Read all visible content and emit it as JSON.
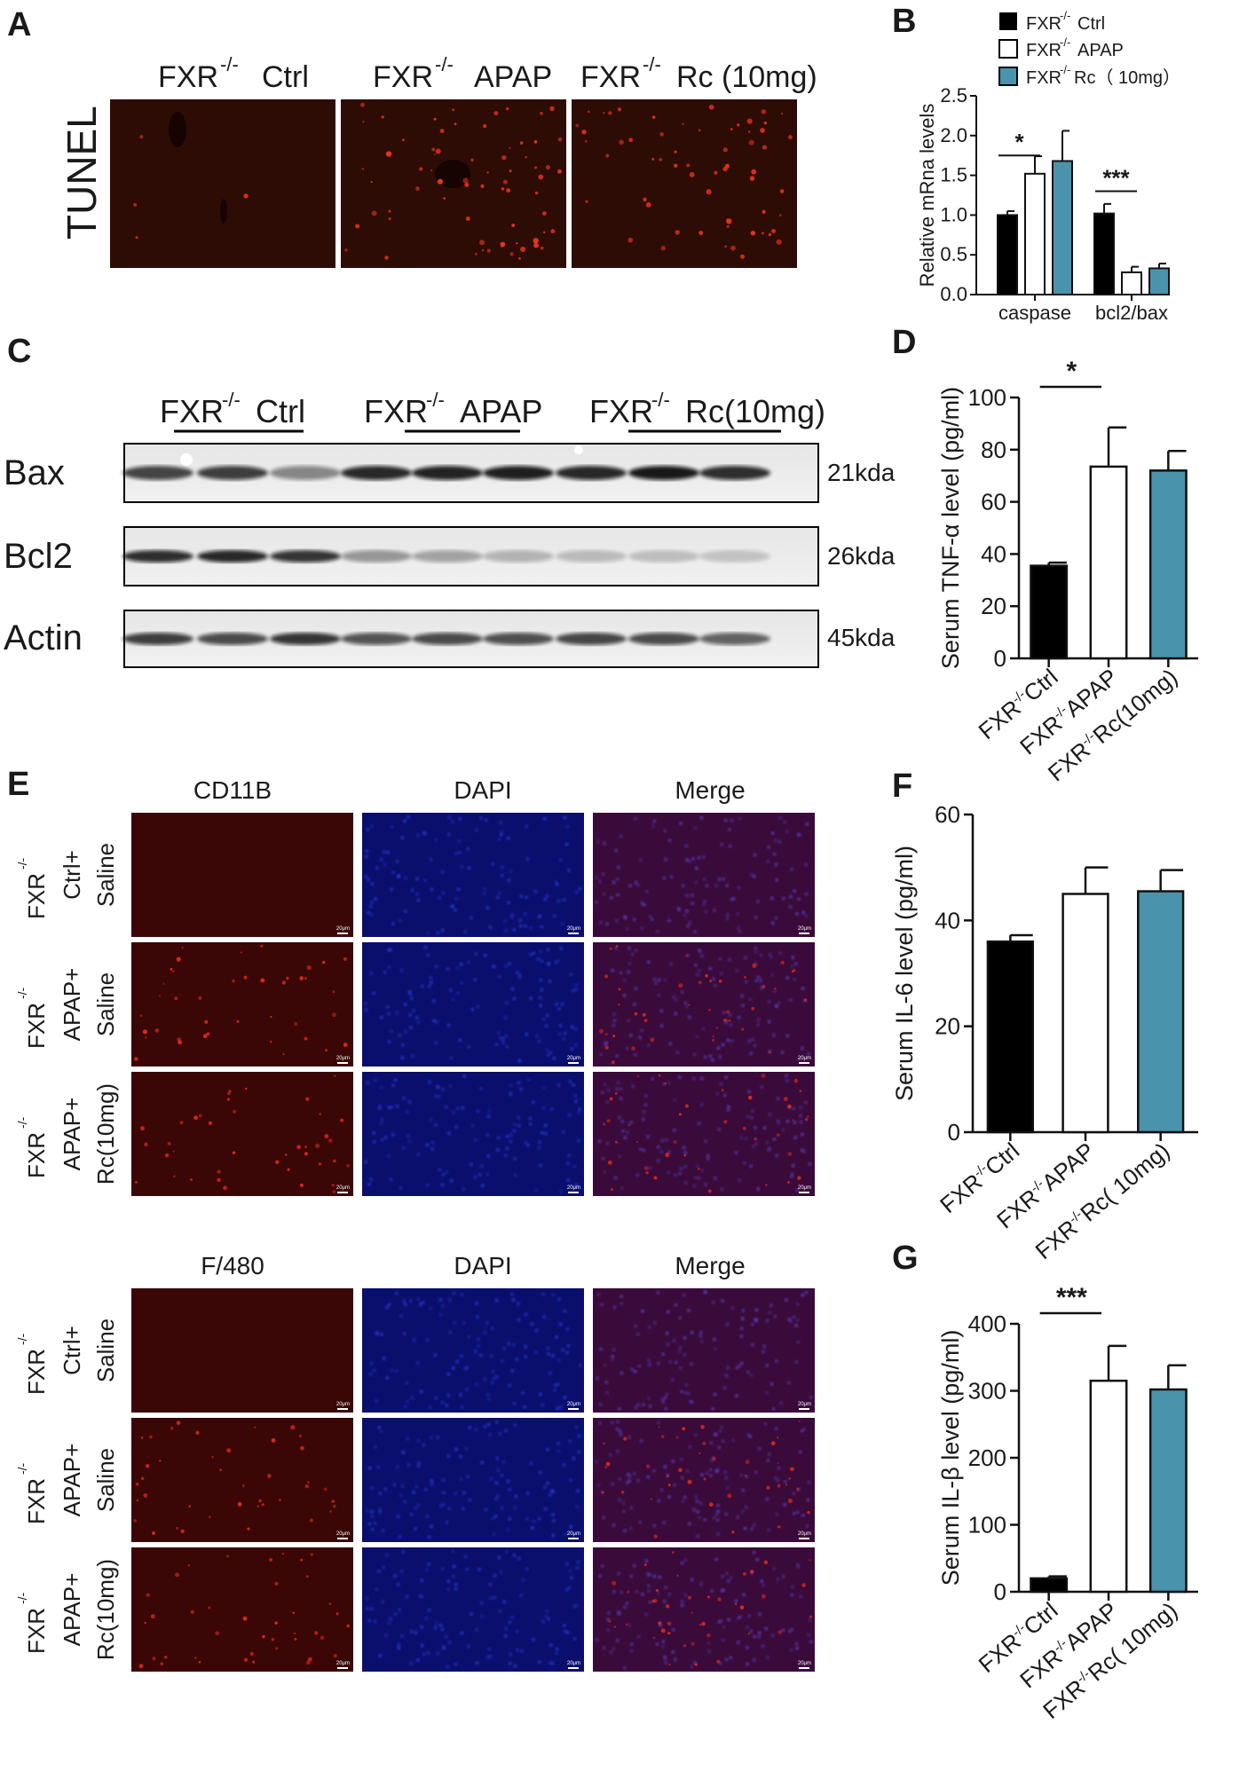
{
  "panel_letters": {
    "a": "A",
    "b": "B",
    "c": "C",
    "d": "D",
    "e": "E",
    "f": "F",
    "g": "G"
  },
  "panel_a": {
    "col_headers": {
      "ctrl": "Ctrl",
      "apap": "APAP",
      "rc": "Rc (10mg)"
    },
    "fxr_prefix": "FXR",
    "ko_sup": "-/-",
    "row_label": "TUNEL",
    "colors": {
      "bg": "#2e0c06",
      "spot": "#e8341c"
    }
  },
  "panel_c": {
    "group_headers": {
      "ctrl": "Ctrl",
      "apap": "APAP",
      "rc": "Rc(10mg)"
    },
    "rows": [
      {
        "name": "Bax",
        "size": "21kda"
      },
      {
        "name": "Bcl2",
        "size": "26kda"
      },
      {
        "name": "Actin",
        "size": "45kda"
      }
    ]
  },
  "panel_e": {
    "top_headers": {
      "c1": "CD11B",
      "c2": "DAPI",
      "c3": "Merge"
    },
    "bottom_headers": {
      "c1": "F/480",
      "c2": "DAPI",
      "c3": "Merge"
    },
    "row_labels": [
      {
        "l1": "FXR",
        "l2": "Ctrl+",
        "l3": "Saline"
      },
      {
        "l1": "FXR",
        "l2": "APAP+",
        "l3": "Saline"
      },
      {
        "l1": "FXR",
        "l2": "APAP+",
        "l3": "Rc(10mg)"
      }
    ],
    "scale_bar": "20μm",
    "colors": {
      "red": "#3a0706",
      "blue": "#0a0f6e",
      "merge": "#3a0a3a"
    }
  },
  "colors": {
    "ctrl": "#000000",
    "apap": "#ffffff",
    "rc": "#4a93ad"
  },
  "chart_data": [
    {
      "panel": "B",
      "type": "bar",
      "categories": [
        "caspase",
        "bcl2/bax"
      ],
      "series": [
        {
          "name": "Ctrl",
          "values": [
            1.0,
            1.02
          ],
          "errors": [
            0.05,
            0.12
          ]
        },
        {
          "name": "APAP",
          "values": [
            1.52,
            0.28
          ],
          "errors": [
            0.22,
            0.07
          ]
        },
        {
          "name": "Rc（ 10mg）",
          "values": [
            1.68,
            0.33
          ],
          "errors": [
            0.38,
            0.06
          ]
        }
      ],
      "ylabel": "Relative mRna levels",
      "ylim": [
        0,
        2.5
      ],
      "yticks": [
        "0.0",
        "0.5",
        "1.0",
        "1.5",
        "2.0",
        "2.5"
      ],
      "significance": [
        {
          "between": "caspase: Ctrl vs APAP",
          "label": "*"
        },
        {
          "between": "bcl2/bax: Ctrl vs APAP",
          "label": "***"
        }
      ],
      "legend_position": "top"
    },
    {
      "panel": "D",
      "type": "bar",
      "categories": [
        "Ctrl",
        "APAP",
        "Rc(10mg)"
      ],
      "values": [
        35.5,
        73.5,
        72
      ],
      "errors": [
        1.2,
        15,
        7.5
      ],
      "ylabel": "Serum TNF-α level (pg/ml)",
      "ylim": [
        0,
        100
      ],
      "yticks": [
        "0",
        "20",
        "40",
        "60",
        "80",
        "100"
      ],
      "significance": [
        {
          "between": "Ctrl vs APAP",
          "label": "*"
        }
      ]
    },
    {
      "panel": "F",
      "type": "bar",
      "categories": [
        "Ctrl",
        "APAP",
        "Rc( 10mg)"
      ],
      "values": [
        36,
        45,
        45.5
      ],
      "errors": [
        1.2,
        5,
        4
      ],
      "ylabel": "Serum IL-6 level  (pg/ml)",
      "ylim": [
        0,
        60
      ],
      "yticks": [
        "0",
        "20",
        "40",
        "60"
      ],
      "significance": []
    },
    {
      "panel": "G",
      "type": "bar",
      "categories": [
        "Ctrl",
        "APAP",
        "Rc( 10mg)"
      ],
      "values": [
        20,
        315,
        302
      ],
      "errors": [
        3,
        52,
        36
      ],
      "ylabel": "Serum IL-β level  (pg/ml)",
      "ylim": [
        0,
        400
      ],
      "yticks": [
        "0",
        "100",
        "200",
        "300",
        "400"
      ],
      "significance": [
        {
          "between": "Ctrl vs APAP",
          "label": "***"
        }
      ]
    }
  ]
}
